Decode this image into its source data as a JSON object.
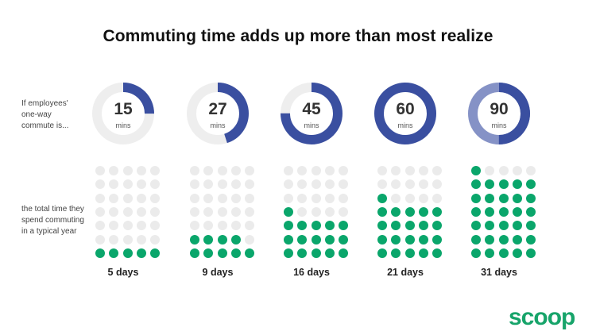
{
  "title": "Commuting time adds up more than most realize",
  "left_labels": {
    "top": "If employees' one-way commute is...",
    "bottom": "the total time they spend commuting in a typical year"
  },
  "colors": {
    "ring_blue": "#3a4fa0",
    "ring_light_blue": "#8592c6",
    "ring_gray": "#eeeeee",
    "dot_green": "#0aa66b",
    "dot_gray": "#ebebeb",
    "logo_green": "#17a46a"
  },
  "columns": [
    {
      "minutes": "15",
      "unit": "mins",
      "days_label": "5 days",
      "commute_fraction": 0.25,
      "green_dots": 5
    },
    {
      "minutes": "27",
      "unit": "mins",
      "days_label": "9 days",
      "commute_fraction": 0.45,
      "green_dots": 9
    },
    {
      "minutes": "45",
      "unit": "mins",
      "days_label": "16 days",
      "commute_fraction": 0.75,
      "green_dots": 16
    },
    {
      "minutes": "60",
      "unit": "mins",
      "days_label": "21 days",
      "commute_fraction": 1.0,
      "green_dots": 21
    },
    {
      "minutes": "90",
      "unit": "mins",
      "days_label": "31 days",
      "commute_fraction": 1.5,
      "green_dots": 31
    }
  ],
  "logo_text": "scoop"
}
